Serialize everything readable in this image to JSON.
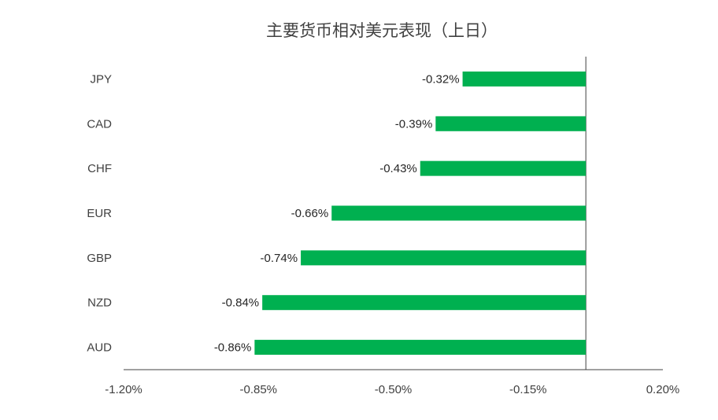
{
  "chart_data": {
    "type": "bar",
    "orientation": "horizontal",
    "title": "主要货币相对美元表现（上日）",
    "categories": [
      "JPY",
      "CAD",
      "CHF",
      "EUR",
      "GBP",
      "NZD",
      "AUD"
    ],
    "values": [
      -0.32,
      -0.39,
      -0.43,
      -0.66,
      -0.74,
      -0.84,
      -0.86
    ],
    "value_labels": [
      "-0.32%",
      "-0.39%",
      "-0.43%",
      "-0.66%",
      "-0.74%",
      "-0.84%",
      "-0.86%"
    ],
    "color": "#00b050",
    "xlim": [
      -1.2,
      0.2
    ],
    "xticks": [
      {
        "value": -1.2,
        "label": "-1.20%"
      },
      {
        "value": -0.85,
        "label": "-0.85%"
      },
      {
        "value": -0.5,
        "label": "-0.50%"
      },
      {
        "value": -0.15,
        "label": "-0.15%"
      },
      {
        "value": 0.2,
        "label": "0.20%"
      }
    ],
    "grid": false
  }
}
